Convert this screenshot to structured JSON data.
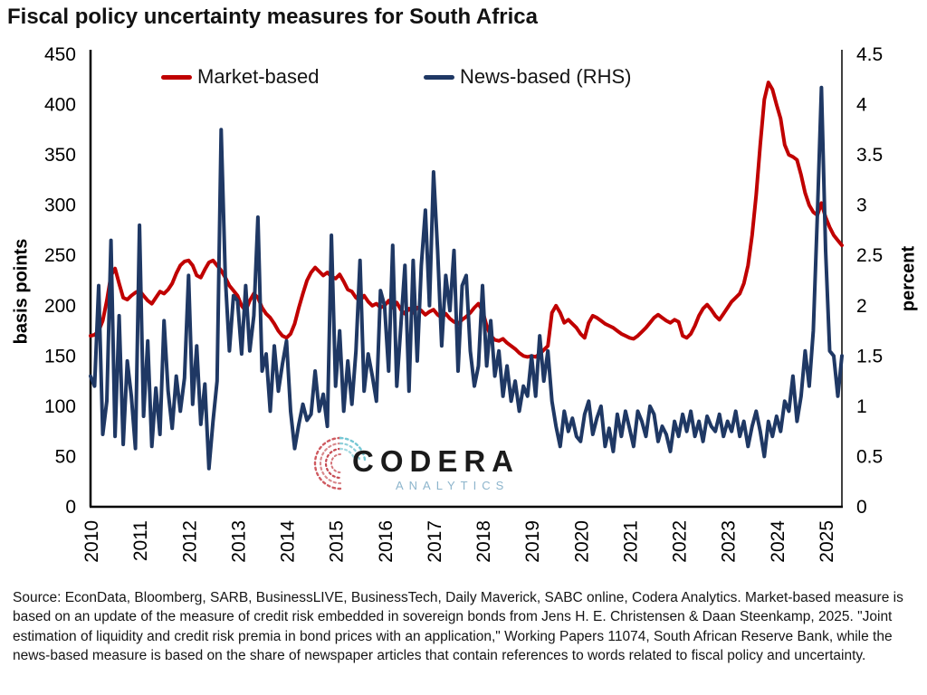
{
  "title": "Fiscal policy uncertainty measures for South Africa",
  "legend": {
    "market_label": "Market-based",
    "news_label": "News-based (RHS)"
  },
  "watermark": {
    "name": "CODERA",
    "sub": "ANALYTICS"
  },
  "footer": "Source: EconData, Bloomberg, SARB, BusinessLIVE, BusinessTech, Daily Maverick, SABC online, Codera Analytics. Market-based measure is based on an update of the measure of credit risk embedded in sovereign bonds from Jens H. E. Christensen & Daan Steenkamp, 2025. \"Joint estimation of liquidity and credit risk premia in bond prices with an application,\" Working Papers 11074, South African Reserve Bank, while the news-based measure is based on the share of newspaper articles that contain references to words related to fiscal policy and uncertainty.",
  "colors": {
    "market_red": "#C00000",
    "news_navy": "#1F3864",
    "left_axis_line": "#000000",
    "right_axis_line": "#404040",
    "watermark_sub_blue": "#8db5cc"
  },
  "chart_data": {
    "type": "line",
    "title": "Fiscal policy uncertainty measures for South Africa",
    "frequency": "monthly",
    "x_start": "2010-01",
    "x_end": "2025-05",
    "grid": false,
    "legend_position": "top-inside",
    "x_tick_labels": [
      "2010",
      "2011",
      "2012",
      "2013",
      "2014",
      "2015",
      "2016",
      "2017",
      "2018",
      "2019",
      "2020",
      "2021",
      "2022",
      "2023",
      "2024",
      "2025"
    ],
    "left_axis": {
      "label": "basis points",
      "min": 0,
      "max": 450,
      "ticks": [
        0,
        50,
        100,
        150,
        200,
        250,
        300,
        350,
        400,
        450
      ],
      "tick_labels": [
        "0",
        "50",
        "100",
        "150",
        "200",
        "250",
        "300",
        "350",
        "400",
        "450"
      ]
    },
    "right_axis": {
      "label": "percent",
      "min": 0,
      "max": 4.5,
      "ticks": [
        0,
        0.5,
        1,
        1.5,
        2,
        2.5,
        3,
        3.5,
        4,
        4.5
      ],
      "tick_labels": [
        "0",
        "0.5",
        "1",
        "1.5",
        "2",
        "2.5",
        "3",
        "3.5",
        "4",
        "4.5"
      ]
    },
    "series": [
      {
        "name": "Market-based",
        "data_name": "market-based-line",
        "axis": "left",
        "unit": "basis points",
        "color": "#C00000",
        "values": [
          170,
          171,
          175,
          185,
          205,
          230,
          237,
          222,
          208,
          206,
          210,
          213,
          215,
          210,
          205,
          202,
          208,
          214,
          212,
          216,
          222,
          232,
          240,
          244,
          245,
          240,
          230,
          228,
          236,
          243,
          245,
          240,
          235,
          228,
          220,
          215,
          210,
          200,
          195,
          205,
          212,
          208,
          198,
          192,
          188,
          182,
          175,
          170,
          168,
          172,
          182,
          198,
          212,
          225,
          233,
          238,
          234,
          230,
          233,
          229,
          227,
          231,
          224,
          216,
          214,
          208,
          205,
          210,
          204,
          200,
          202,
          198,
          200,
          205,
          198,
          203,
          196,
          192,
          197,
          193,
          198,
          195,
          191,
          194,
          196,
          191,
          188,
          192,
          187,
          184,
          182,
          186,
          189,
          193,
          198,
          202,
          195,
          180,
          170,
          166,
          165,
          167,
          163,
          160,
          157,
          153,
          150,
          149,
          150,
          149,
          152,
          156,
          160,
          193,
          200,
          193,
          183,
          186,
          182,
          178,
          172,
          168,
          183,
          190,
          188,
          185,
          182,
          180,
          178,
          175,
          172,
          170,
          168,
          167,
          170,
          174,
          178,
          183,
          188,
          191,
          188,
          185,
          183,
          186,
          184,
          170,
          168,
          172,
          180,
          190,
          197,
          201,
          196,
          190,
          186,
          192,
          198,
          204,
          208,
          212,
          222,
          240,
          270,
          310,
          360,
          405,
          422,
          415,
          400,
          386,
          360,
          350,
          348,
          345,
          330,
          312,
          300,
          293,
          290,
          302,
          288,
          278,
          270,
          265,
          260
        ]
      },
      {
        "name": "News-based (RHS)",
        "data_name": "news-based-line",
        "axis": "right",
        "unit": "percent",
        "color": "#1F3864",
        "values": [
          1.3,
          1.2,
          2.2,
          0.72,
          1.05,
          2.65,
          0.7,
          1.9,
          0.62,
          1.45,
          1.1,
          0.58,
          2.8,
          0.9,
          1.65,
          0.6,
          1.18,
          0.72,
          1.85,
          1.15,
          0.78,
          1.3,
          0.95,
          1.28,
          2.3,
          1.02,
          1.6,
          0.82,
          1.22,
          0.38,
          0.85,
          1.25,
          3.75,
          2.28,
          1.55,
          2.1,
          2.05,
          1.52,
          2.2,
          1.55,
          1.9,
          2.88,
          1.35,
          1.52,
          0.95,
          1.6,
          1.15,
          1.42,
          1.65,
          0.95,
          0.58,
          0.82,
          1.02,
          0.86,
          0.92,
          1.35,
          0.95,
          1.12,
          0.8,
          2.7,
          1.2,
          1.75,
          0.95,
          1.45,
          1.02,
          1.55,
          2.45,
          1.15,
          1.52,
          1.3,
          1.05,
          2.15,
          2.0,
          1.35,
          2.6,
          1.2,
          1.8,
          2.4,
          1.15,
          2.45,
          1.45,
          2.4,
          2.95,
          2.0,
          3.33,
          2.55,
          1.6,
          2.3,
          1.95,
          2.55,
          1.35,
          2.2,
          2.3,
          1.55,
          1.2,
          1.4,
          2.2,
          1.4,
          1.85,
          1.3,
          1.55,
          1.1,
          1.4,
          1.05,
          1.25,
          0.95,
          1.2,
          1.1,
          1.5,
          1.1,
          1.7,
          1.25,
          1.55,
          1.05,
          0.8,
          0.6,
          0.95,
          0.75,
          0.88,
          0.7,
          0.65,
          0.92,
          1.05,
          0.72,
          0.88,
          1.0,
          0.6,
          0.78,
          0.55,
          0.92,
          0.7,
          0.95,
          0.78,
          0.6,
          0.95,
          0.85,
          0.7,
          1.0,
          0.92,
          0.65,
          0.8,
          0.72,
          0.55,
          0.85,
          0.7,
          0.92,
          0.75,
          0.95,
          0.7,
          0.85,
          0.65,
          0.9,
          0.8,
          0.75,
          0.92,
          0.7,
          0.85,
          0.75,
          0.95,
          0.7,
          0.85,
          0.6,
          0.8,
          0.95,
          0.75,
          0.5,
          0.85,
          0.7,
          0.9,
          0.75,
          1.05,
          0.95,
          1.3,
          0.85,
          1.1,
          1.55,
          1.2,
          1.75,
          2.9,
          4.17,
          2.55,
          1.55,
          1.5,
          1.1,
          1.5
        ]
      }
    ]
  }
}
